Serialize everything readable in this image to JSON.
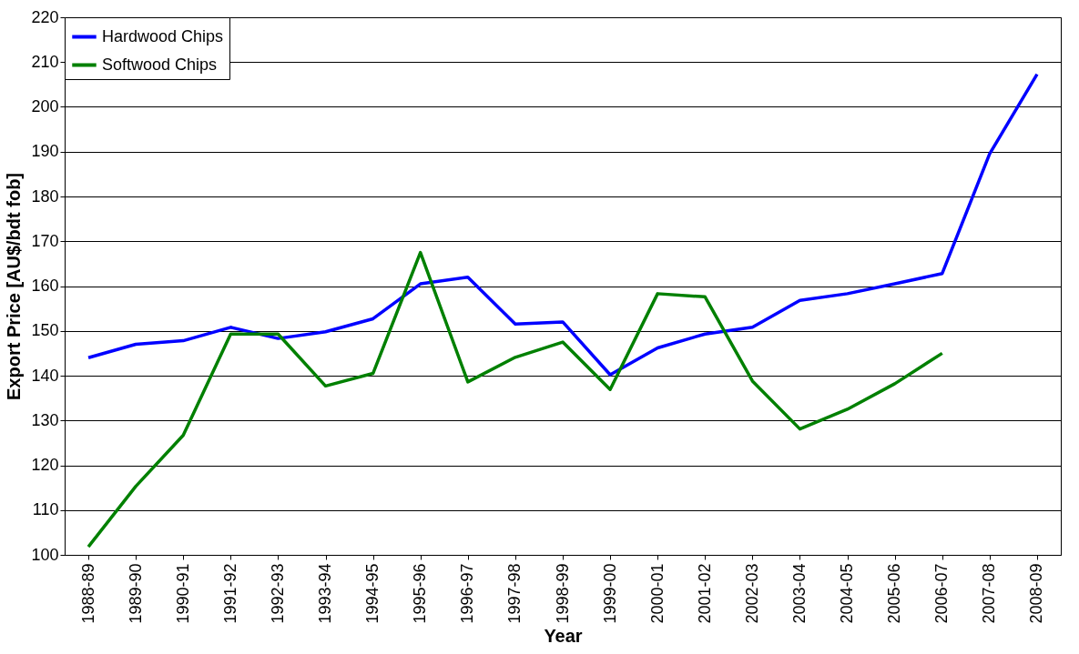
{
  "chart_data": {
    "type": "line",
    "xlabel": "Year",
    "ylabel": "Export Price [AU$/bdt fob]",
    "categories": [
      "1988-89",
      "1989-90",
      "1990-91",
      "1991-92",
      "1992-93",
      "1993-94",
      "1994-95",
      "1995-96",
      "1996-97",
      "1997-98",
      "1998-99",
      "1999-00",
      "2000-01",
      "2001-02",
      "2002-03",
      "2003-04",
      "2004-05",
      "2005-06",
      "2006-07",
      "2007-08",
      "2008-09"
    ],
    "series": [
      {
        "name": "Hardwood Chips",
        "color": "#0000ff",
        "values": [
          144,
          147,
          147.8,
          150.8,
          148.3,
          149.8,
          152.7,
          160.5,
          162,
          151.5,
          152,
          140.2,
          146.2,
          149.3,
          150.8,
          156.8,
          158.3,
          160.5,
          162.8,
          189.5,
          207.3
        ]
      },
      {
        "name": "Softwood Chips",
        "color": "#008000",
        "values": [
          101.8,
          115.3,
          126.7,
          149.3,
          149.3,
          137.7,
          140.5,
          167.5,
          138.6,
          144.1,
          147.5,
          136.9,
          158.3,
          157.6,
          138.8,
          128.1,
          132.5,
          138.2,
          145,
          null,
          null
        ]
      }
    ],
    "ylim": [
      100,
      220
    ],
    "yticks": [
      100,
      110,
      120,
      130,
      140,
      150,
      160,
      170,
      180,
      190,
      200,
      210,
      220
    ],
    "grid": "y",
    "legend": "top left",
    "marker": "none",
    "line_style": "solid"
  }
}
